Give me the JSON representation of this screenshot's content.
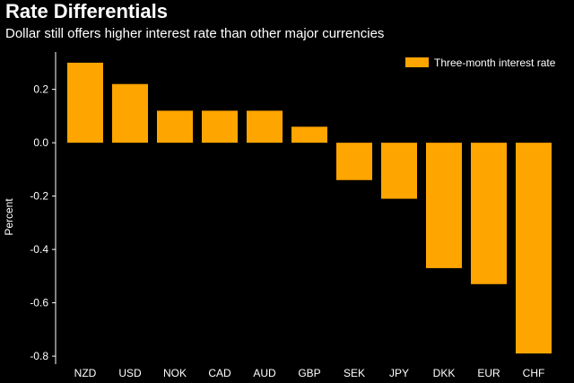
{
  "header": {
    "title": "Rate Differentials",
    "subtitle": "Dollar still offers higher interest rate than other major currencies"
  },
  "colors": {
    "background": "#000000",
    "bar": "#FFA500",
    "text": "#ffffff",
    "axis": "#ffffff"
  },
  "chart_data": {
    "type": "bar",
    "title": "Rate Differentials",
    "subtitle": "Dollar still offers higher interest rate than other major currencies",
    "xlabel": "",
    "ylabel": "Percent",
    "categories": [
      "NZD",
      "USD",
      "NOK",
      "CAD",
      "AUD",
      "GBP",
      "SEK",
      "JPY",
      "DKK",
      "EUR",
      "CHF"
    ],
    "series": [
      {
        "name": "Three-month interest rate",
        "values": [
          0.3,
          0.22,
          0.12,
          0.12,
          0.12,
          0.06,
          -0.14,
          -0.21,
          -0.47,
          -0.53,
          -0.79
        ]
      }
    ],
    "ylim": [
      -0.83,
      0.34
    ],
    "yticks": [
      0.2,
      0.0,
      -0.2,
      -0.4,
      -0.6,
      -0.8
    ],
    "ytick_labels": [
      "0.2",
      "0.0",
      "-0.2",
      "-0.4",
      "-0.6",
      "-0.8"
    ],
    "legend_position": "top-right",
    "grid": false
  }
}
